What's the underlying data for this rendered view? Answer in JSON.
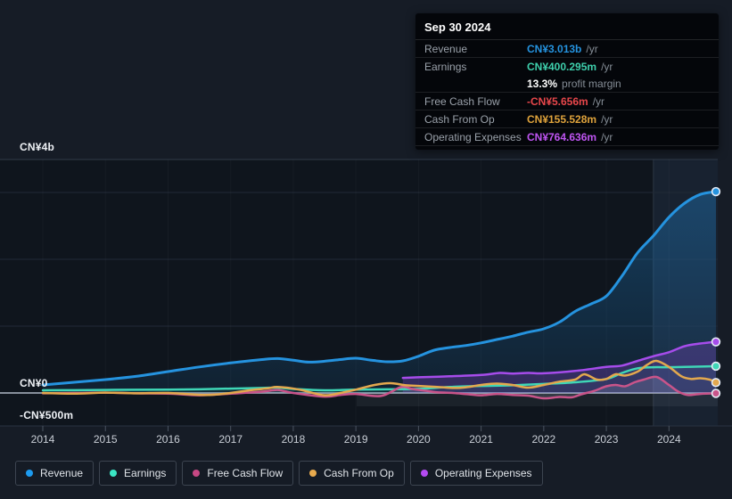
{
  "tooltip": {
    "date": "Sep 30 2024",
    "rows": [
      {
        "label": "Revenue",
        "value": "CN¥3.013b",
        "suffix": "/yr",
        "color": "#2593df"
      },
      {
        "label": "Earnings",
        "value": "CN¥400.295m",
        "suffix": "/yr",
        "color": "#3ecfac"
      },
      {
        "label": "Free Cash Flow",
        "value": "-CN¥5.656m",
        "suffix": "/yr",
        "color": "#e8474b"
      },
      {
        "label": "Cash From Op",
        "value": "CN¥155.528m",
        "suffix": "/yr",
        "color": "#dfa33c"
      },
      {
        "label": "Operating Expenses",
        "value": "CN¥764.636m",
        "suffix": "/yr",
        "color": "#bf55f2"
      }
    ],
    "margin": {
      "value": "13.3%",
      "text": "profit margin"
    }
  },
  "legend": [
    {
      "label": "Revenue",
      "color": "#1d9bf0"
    },
    {
      "label": "Earnings",
      "color": "#3be6c4"
    },
    {
      "label": "Free Cash Flow",
      "color": "#c74884"
    },
    {
      "label": "Cash From Op",
      "color": "#e8aa4e"
    },
    {
      "label": "Operating Expenses",
      "color": "#b44bf2"
    }
  ],
  "chart_data": {
    "type": "line",
    "title": "",
    "unit": "CN¥ billions per year",
    "grid": "horizontal",
    "legend_position": "bottom",
    "xlim": [
      2013.3,
      2024.8
    ],
    "ylim": [
      -0.58,
      3.5
    ],
    "x_ticks": [
      2014,
      2015,
      2016,
      2017,
      2018,
      2019,
      2020,
      2021,
      2022,
      2023,
      2024
    ],
    "y_ticks": [
      {
        "label": "CN¥4b",
        "value": 4
      },
      {
        "label": "CN¥0",
        "value": 0
      },
      {
        "label": "-CN¥500m",
        "value": -0.5
      }
    ],
    "highlight_period": {
      "from": 2023.75,
      "to": 2024.78,
      "note": "last 12 months"
    },
    "series": [
      {
        "name": "Revenue",
        "color": "#2593df",
        "points": [
          [
            2014,
            0.12
          ],
          [
            2014.5,
            0.16
          ],
          [
            2015,
            0.2
          ],
          [
            2015.5,
            0.25
          ],
          [
            2016,
            0.32
          ],
          [
            2016.5,
            0.39
          ],
          [
            2017,
            0.45
          ],
          [
            2017.5,
            0.5
          ],
          [
            2017.75,
            0.515
          ],
          [
            2018,
            0.49
          ],
          [
            2018.25,
            0.462
          ],
          [
            2018.5,
            0.475
          ],
          [
            2018.75,
            0.5
          ],
          [
            2019,
            0.52
          ],
          [
            2019.25,
            0.49
          ],
          [
            2019.5,
            0.467
          ],
          [
            2019.75,
            0.48
          ],
          [
            2020,
            0.55
          ],
          [
            2020.25,
            0.64
          ],
          [
            2020.5,
            0.68
          ],
          [
            2020.75,
            0.71
          ],
          [
            2021,
            0.75
          ],
          [
            2021.25,
            0.8
          ],
          [
            2021.5,
            0.85
          ],
          [
            2021.75,
            0.91
          ],
          [
            2022,
            0.96
          ],
          [
            2022.25,
            1.06
          ],
          [
            2022.5,
            1.22
          ],
          [
            2022.75,
            1.33
          ],
          [
            2023,
            1.45
          ],
          [
            2023.25,
            1.75
          ],
          [
            2023.5,
            2.1
          ],
          [
            2023.75,
            2.35
          ],
          [
            2024,
            2.63
          ],
          [
            2024.25,
            2.84
          ],
          [
            2024.5,
            2.97
          ],
          [
            2024.75,
            3.013
          ]
        ]
      },
      {
        "name": "Earnings",
        "color": "#3fd6b6",
        "points": [
          [
            2014,
            0.04
          ],
          [
            2014.5,
            0.042
          ],
          [
            2015,
            0.045
          ],
          [
            2015.5,
            0.048
          ],
          [
            2016,
            0.05
          ],
          [
            2016.5,
            0.055
          ],
          [
            2017,
            0.065
          ],
          [
            2017.5,
            0.075
          ],
          [
            2017.75,
            0.08
          ],
          [
            2018,
            0.06
          ],
          [
            2018.5,
            0.04
          ],
          [
            2019,
            0.05
          ],
          [
            2019.5,
            0.055
          ],
          [
            2020,
            0.062
          ],
          [
            2020.5,
            0.09
          ],
          [
            2021,
            0.105
          ],
          [
            2021.5,
            0.115
          ],
          [
            2022,
            0.135
          ],
          [
            2022.5,
            0.16
          ],
          [
            2023,
            0.21
          ],
          [
            2023.25,
            0.3
          ],
          [
            2023.5,
            0.37
          ],
          [
            2023.75,
            0.385
          ],
          [
            2024,
            0.385
          ],
          [
            2024.25,
            0.39
          ],
          [
            2024.5,
            0.395
          ],
          [
            2024.75,
            0.4003
          ]
        ]
      },
      {
        "name": "Free Cash Flow",
        "color": "#c9548a",
        "points": [
          [
            2014,
            -0.005
          ],
          [
            2014.5,
            0.0
          ],
          [
            2015,
            0.005
          ],
          [
            2015.5,
            -0.005
          ],
          [
            2016,
            -0.01
          ],
          [
            2016.5,
            -0.035
          ],
          [
            2017,
            -0.01
          ],
          [
            2017.5,
            0.02
          ],
          [
            2017.75,
            0.045
          ],
          [
            2018,
            0.0
          ],
          [
            2018.5,
            -0.055
          ],
          [
            2018.75,
            -0.03
          ],
          [
            2019,
            -0.015
          ],
          [
            2019.4,
            -0.045
          ],
          [
            2019.72,
            0.088
          ],
          [
            2019.9,
            0.06
          ],
          [
            2020.1,
            0.035
          ],
          [
            2020.3,
            0.01
          ],
          [
            2020.55,
            0.0
          ],
          [
            2020.8,
            -0.02
          ],
          [
            2021,
            -0.035
          ],
          [
            2021.25,
            -0.015
          ],
          [
            2021.5,
            -0.03
          ],
          [
            2021.75,
            -0.04
          ],
          [
            2022,
            -0.08
          ],
          [
            2022.25,
            -0.06
          ],
          [
            2022.45,
            -0.065
          ],
          [
            2022.6,
            -0.02
          ],
          [
            2022.8,
            0.03
          ],
          [
            2023,
            0.1
          ],
          [
            2023.15,
            0.12
          ],
          [
            2023.3,
            0.1
          ],
          [
            2023.45,
            0.16
          ],
          [
            2023.6,
            0.2
          ],
          [
            2023.8,
            0.24
          ],
          [
            2024,
            0.12
          ],
          [
            2024.15,
            0.02
          ],
          [
            2024.3,
            -0.03
          ],
          [
            2024.5,
            -0.015
          ],
          [
            2024.75,
            -0.00566
          ]
        ]
      },
      {
        "name": "Cash From Op",
        "color": "#e3a84e",
        "points": [
          [
            2014,
            0.0
          ],
          [
            2014.5,
            -0.01
          ],
          [
            2015,
            0.005
          ],
          [
            2015.5,
            -0.005
          ],
          [
            2016,
            0.0
          ],
          [
            2016.6,
            -0.03
          ],
          [
            2017,
            0.0
          ],
          [
            2017.3,
            0.04
          ],
          [
            2017.6,
            0.07
          ],
          [
            2017.75,
            0.09
          ],
          [
            2018.1,
            0.05
          ],
          [
            2018.5,
            -0.035
          ],
          [
            2018.8,
            0.01
          ],
          [
            2019,
            0.05
          ],
          [
            2019.3,
            0.12
          ],
          [
            2019.55,
            0.147
          ],
          [
            2019.8,
            0.115
          ],
          [
            2020,
            0.105
          ],
          [
            2020.3,
            0.09
          ],
          [
            2020.6,
            0.075
          ],
          [
            2020.8,
            0.09
          ],
          [
            2021,
            0.12
          ],
          [
            2021.25,
            0.14
          ],
          [
            2021.5,
            0.12
          ],
          [
            2021.75,
            0.08
          ],
          [
            2022,
            0.12
          ],
          [
            2022.25,
            0.17
          ],
          [
            2022.5,
            0.2
          ],
          [
            2022.65,
            0.28
          ],
          [
            2022.85,
            0.2
          ],
          [
            2023,
            0.21
          ],
          [
            2023.15,
            0.28
          ],
          [
            2023.3,
            0.26
          ],
          [
            2023.5,
            0.32
          ],
          [
            2023.65,
            0.42
          ],
          [
            2023.8,
            0.48
          ],
          [
            2024,
            0.39
          ],
          [
            2024.2,
            0.25
          ],
          [
            2024.35,
            0.21
          ],
          [
            2024.5,
            0.22
          ],
          [
            2024.65,
            0.2
          ],
          [
            2024.75,
            0.15553
          ]
        ]
      },
      {
        "name": "Operating Expenses",
        "color": "#a64ceb",
        "points": [
          [
            2019.75,
            0.225
          ],
          [
            2020,
            0.235
          ],
          [
            2020.5,
            0.25
          ],
          [
            2021,
            0.27
          ],
          [
            2021.3,
            0.3
          ],
          [
            2021.5,
            0.29
          ],
          [
            2021.75,
            0.3
          ],
          [
            2022,
            0.295
          ],
          [
            2022.5,
            0.33
          ],
          [
            2023,
            0.39
          ],
          [
            2023.25,
            0.41
          ],
          [
            2023.5,
            0.48
          ],
          [
            2023.75,
            0.55
          ],
          [
            2024,
            0.61
          ],
          [
            2024.25,
            0.7
          ],
          [
            2024.5,
            0.74
          ],
          [
            2024.75,
            0.76464
          ]
        ]
      }
    ]
  }
}
